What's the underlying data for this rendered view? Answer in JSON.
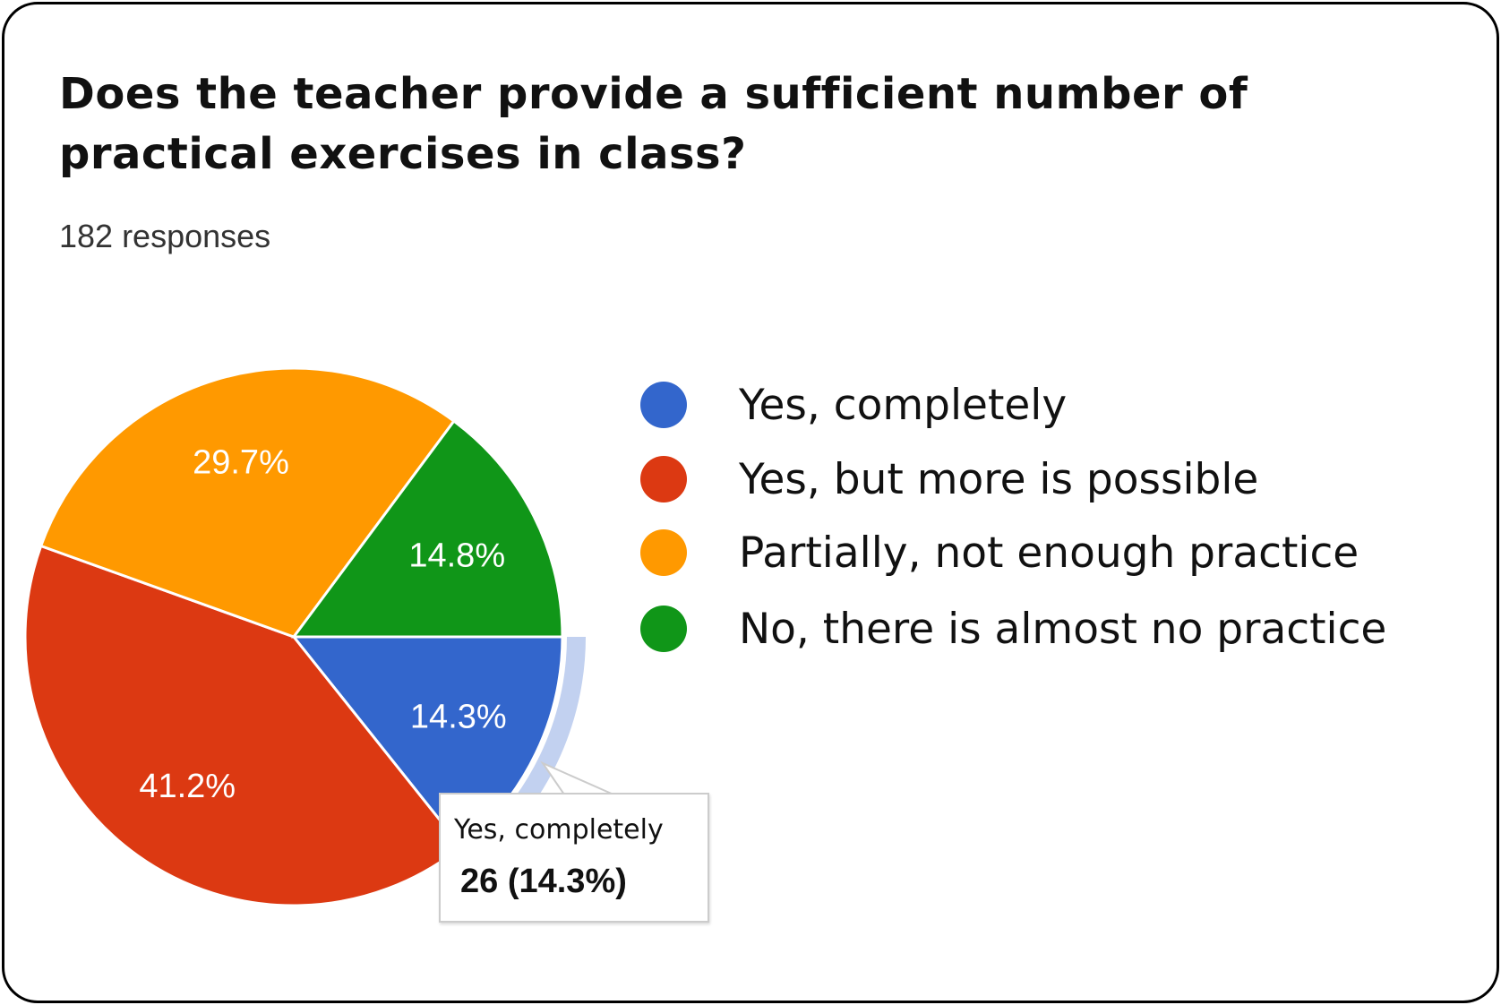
{
  "title": "Does the teacher provide a sufficient number of practical exercises in class?",
  "responses": "182 responses",
  "chart_data": {
    "type": "pie",
    "categories": [
      "Yes, completely",
      "Yes, but more is possible",
      "Partially, not enough practice",
      "No, there is almost no practice"
    ],
    "values": [
      26,
      75,
      54,
      27
    ],
    "percent_labels": [
      "14.3%",
      "41.2%",
      "29.7%",
      "14.8%"
    ],
    "colors": [
      "#3366cc",
      "#dc3912",
      "#ff9900",
      "#109618"
    ],
    "start": "3 o'clock, clockwise",
    "legend_position": "right",
    "highlighted": "Yes, completely"
  },
  "tooltip": {
    "label": "Yes, completely",
    "value": "26 (14.3%)",
    "highlight_color": "#c2d1f0"
  }
}
